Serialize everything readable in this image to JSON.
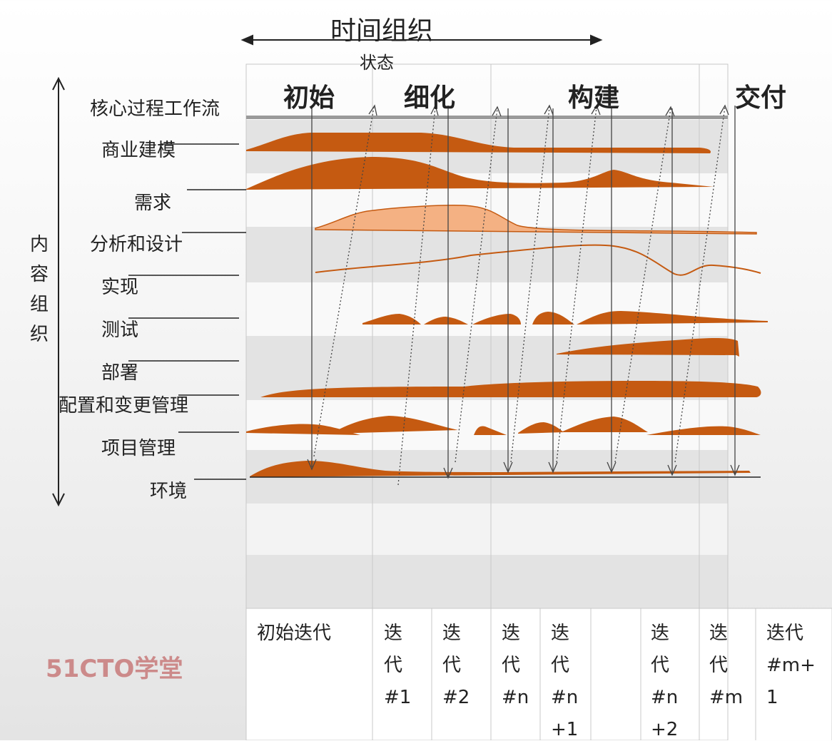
{
  "title": "时间组织",
  "state_label": "状态",
  "phases": [
    "初始",
    "细化",
    "构建",
    "交付"
  ],
  "core_header": "核心过程工作流",
  "content_org": [
    "内",
    "容",
    "组",
    "织"
  ],
  "workflows": [
    "商业建模",
    "需求",
    "分析和设计",
    "实现",
    "测试",
    "部署",
    "配置和变更管理",
    "项目管理",
    "环境"
  ],
  "iterations": {
    "initial": "初始迭代",
    "it1": [
      "迭",
      "代",
      "#1"
    ],
    "it2": [
      "迭",
      "代",
      "#2"
    ],
    "itn": [
      "迭",
      "代",
      "#n"
    ],
    "itn1": [
      "迭",
      "代",
      "#n",
      "+1"
    ],
    "itn2": [
      "迭",
      "代",
      "#n",
      "+2"
    ],
    "itm": [
      "迭",
      "代",
      "#m"
    ],
    "itm1": [
      "迭代",
      "#m+",
      "1"
    ]
  },
  "logo": {
    "number": "51CTO",
    "text": "学堂"
  },
  "colors": {
    "accent": "#c55a11",
    "light_accent": "#f4b183",
    "grid": "#c8c8c8",
    "band": "#e3e3e3"
  }
}
